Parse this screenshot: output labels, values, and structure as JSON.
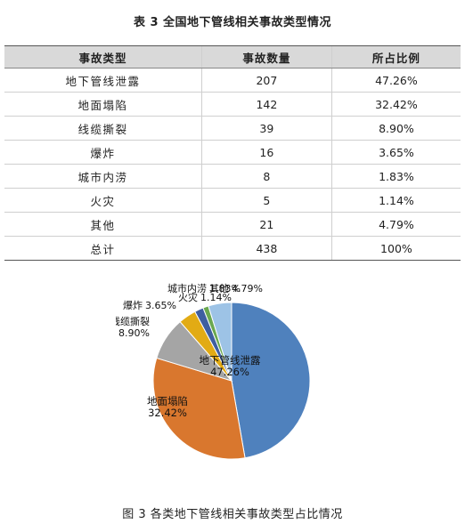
{
  "table": {
    "title": "表 3 全国地下管线相关事故类型情况",
    "headers": [
      "事故类型",
      "事故数量",
      "所占比例"
    ],
    "rows": [
      [
        "地下管线泄露",
        "207",
        "47.26%"
      ],
      [
        "地面塌陷",
        "142",
        "32.42%"
      ],
      [
        "线缆撕裂",
        "39",
        "8.90%"
      ],
      [
        "爆炸",
        "16",
        "3.65%"
      ],
      [
        "城市内涝",
        "8",
        "1.83%"
      ],
      [
        "火灾",
        "5",
        "1.14%"
      ],
      [
        "其他",
        "21",
        "4.79%"
      ],
      [
        "总计",
        "438",
        "100%"
      ]
    ]
  },
  "chart_data": {
    "type": "pie",
    "slices": [
      {
        "name": "地下管线泄露",
        "value": 47.26,
        "label": "47.26%",
        "color": "#4f81bd"
      },
      {
        "name": "地面塌陷",
        "value": 32.42,
        "label": "32.42%",
        "color": "#d9772e"
      },
      {
        "name": "线缆撕裂",
        "value": 8.9,
        "label": "8.90%",
        "color": "#a5a5a5"
      },
      {
        "name": "爆炸",
        "value": 3.65,
        "label": "3.65%",
        "color": "#e2ab14"
      },
      {
        "name": "城市内涝",
        "value": 1.83,
        "label": "1.83%",
        "color": "#3e5ea0"
      },
      {
        "name": "火灾",
        "value": 1.14,
        "label": "1.14%",
        "color": "#6aa84f"
      },
      {
        "name": "其他",
        "value": 4.79,
        "label": "4.79%",
        "color": "#9dc3e6"
      }
    ]
  },
  "caption": "图 3 各类地下管线相关事故类型占比情况"
}
